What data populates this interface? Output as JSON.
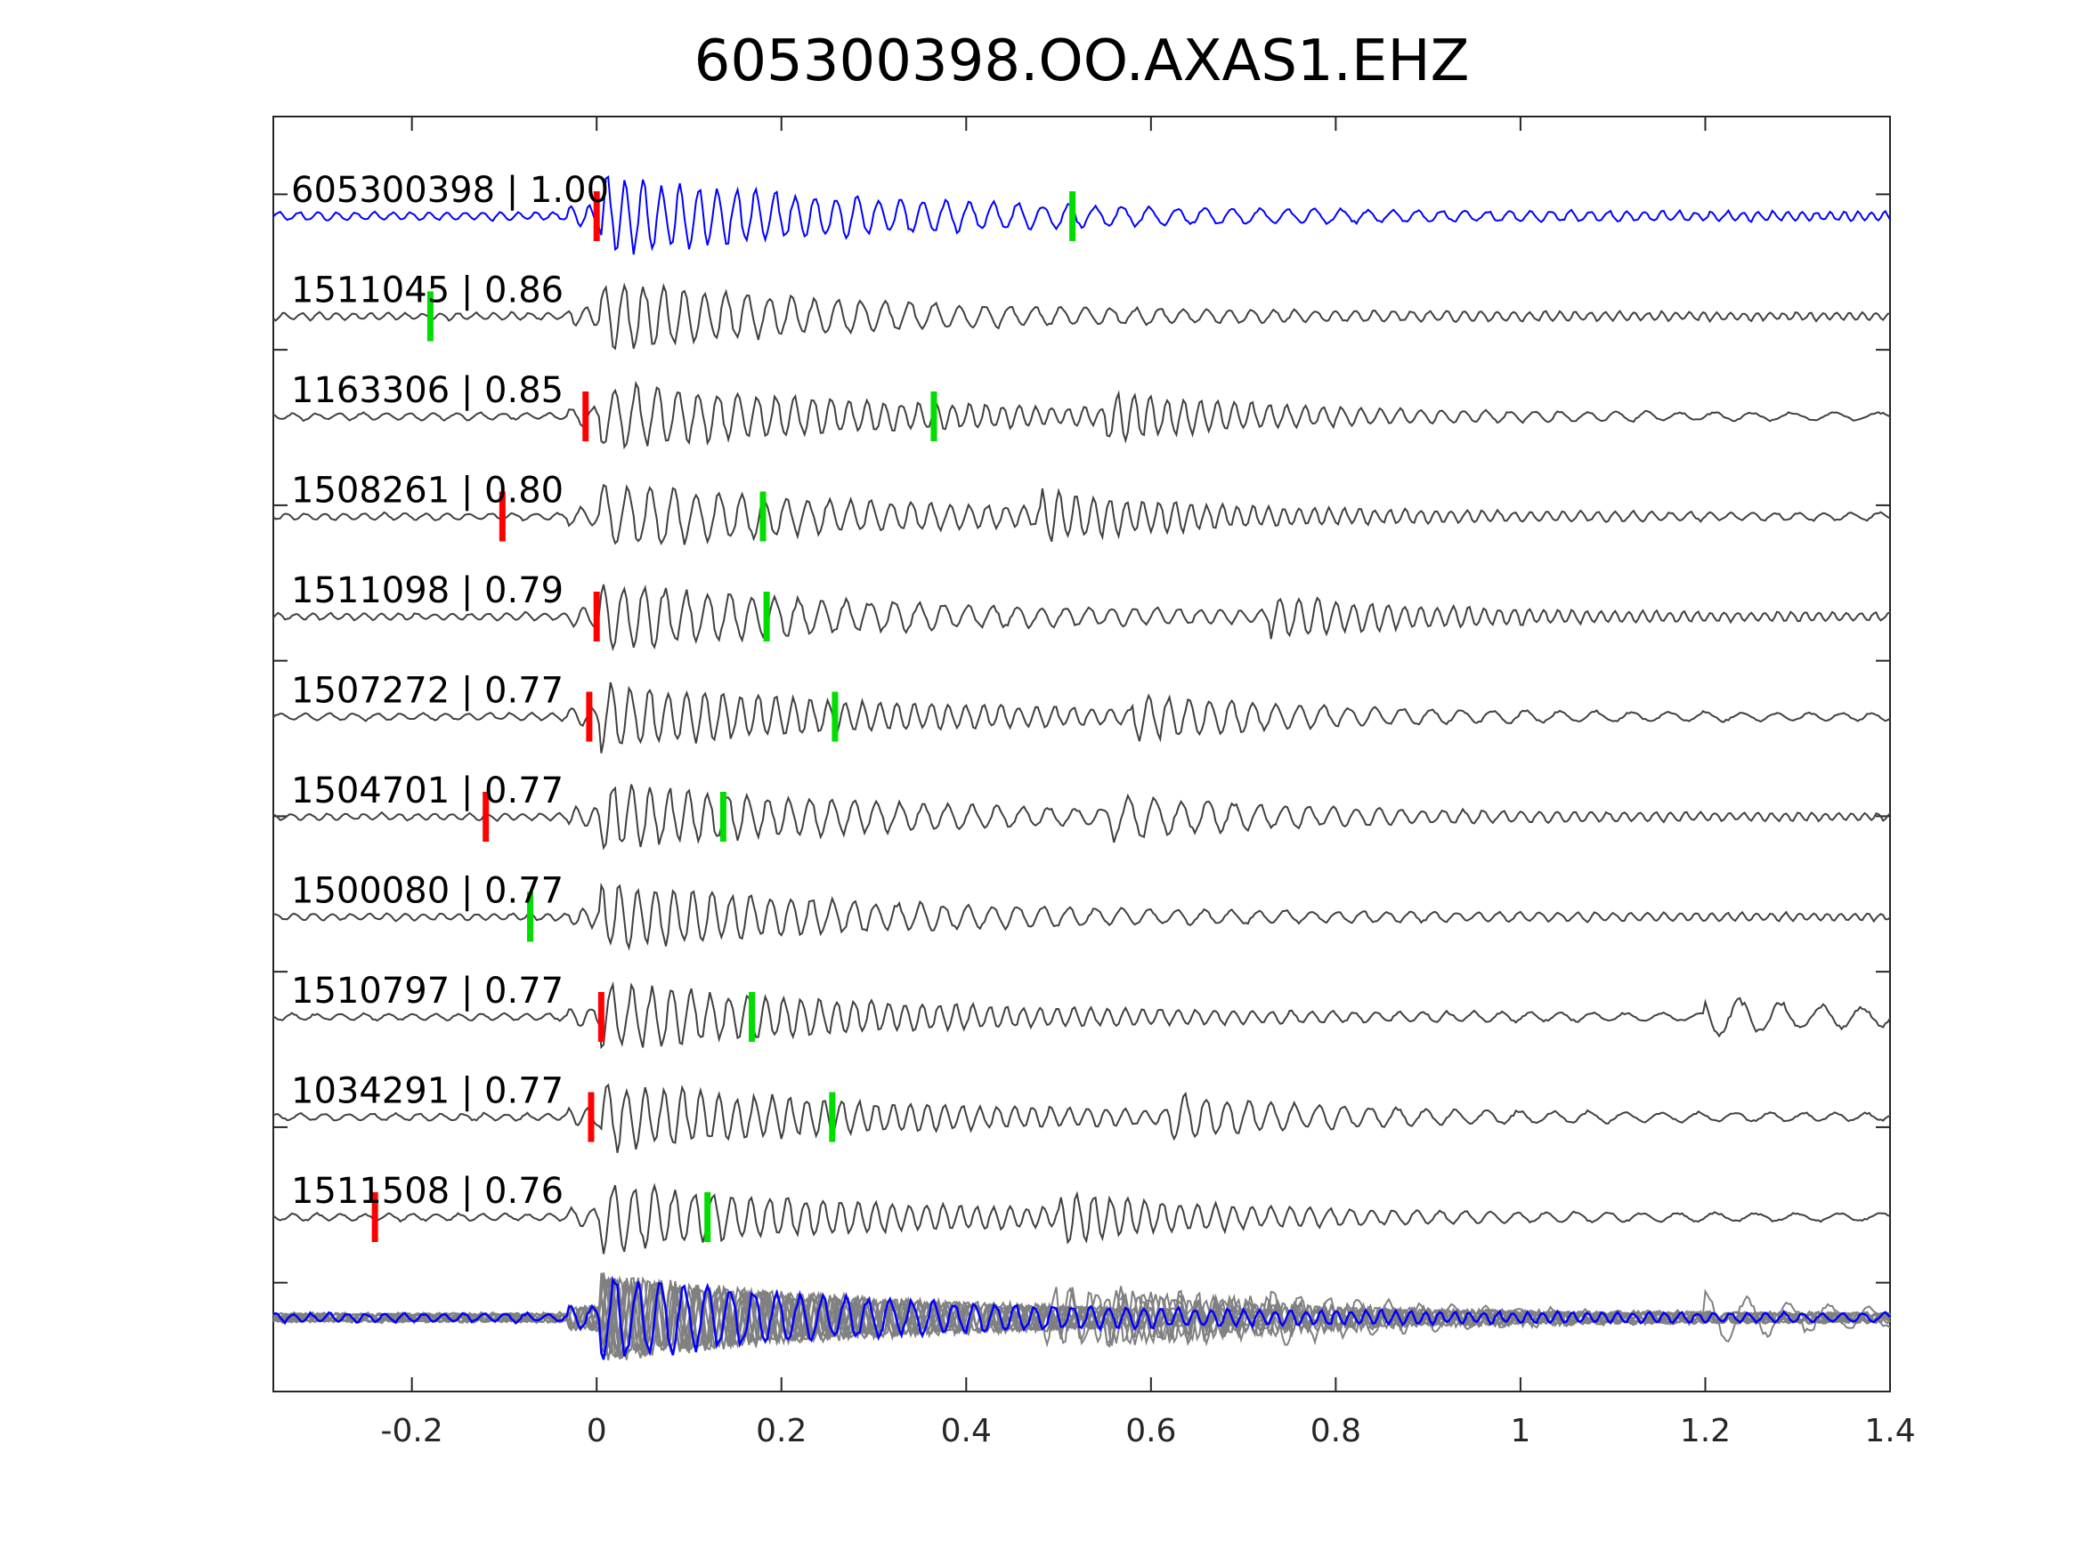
{
  "title": "605300398.OO.AXAS1.EHZ",
  "chart_data": {
    "type": "line",
    "title": "605300398.OO.AXAS1.EHZ",
    "xlabel": "",
    "ylabel": "",
    "xlim": [
      -0.35,
      1.4
    ],
    "xticks": [
      -0.2,
      0,
      0.2,
      0.4,
      0.6,
      0.8,
      1,
      1.2,
      1.4
    ],
    "xtick_labels": [
      "-0.2",
      "0",
      "0.2",
      "0.4",
      "0.6",
      "0.8",
      "1",
      "1.2",
      "1.4"
    ],
    "grid": false,
    "colors": {
      "template": "#0000ff",
      "trace": "#404040",
      "stack": "#808080",
      "p_pick": "#ff0000",
      "s_pick": "#00dd00",
      "axis": "#262626"
    },
    "series": [
      {
        "label": "605300398 | 1.00",
        "template": true,
        "p_pick": 0.0,
        "s_pick": 0.515,
        "amp": 1.0
      },
      {
        "label": "1511045 | 0.86",
        "p_pick": null,
        "s_pick": -0.18,
        "amp": 0.85
      },
      {
        "label": "1163306 | 0.85",
        "p_pick": -0.012,
        "s_pick": 0.365,
        "amp": 0.85
      },
      {
        "label": "1508261 | 0.80",
        "p_pick": -0.102,
        "s_pick": 0.18,
        "amp": 0.85
      },
      {
        "label": "1511098 | 0.79",
        "p_pick": 0.0,
        "s_pick": 0.184,
        "amp": 0.85
      },
      {
        "label": "1507272 | 0.77",
        "p_pick": -0.008,
        "s_pick": 0.258,
        "amp": 0.85
      },
      {
        "label": "1504701 | 0.77",
        "p_pick": -0.12,
        "s_pick": 0.137,
        "amp": 0.85
      },
      {
        "label": "1500080 | 0.77",
        "p_pick": null,
        "s_pick": -0.072,
        "amp": 0.85
      },
      {
        "label": "1510797 | 0.77",
        "p_pick": 0.005,
        "s_pick": 0.168,
        "amp": 0.85
      },
      {
        "label": "1034291 | 0.77",
        "p_pick": -0.006,
        "s_pick": 0.255,
        "amp": 0.85
      },
      {
        "label": "1511508 | 0.76",
        "p_pick": -0.24,
        "s_pick": 0.12,
        "amp": 0.85
      }
    ],
    "stack": {
      "count": 10,
      "has_template_overlay": true
    }
  }
}
